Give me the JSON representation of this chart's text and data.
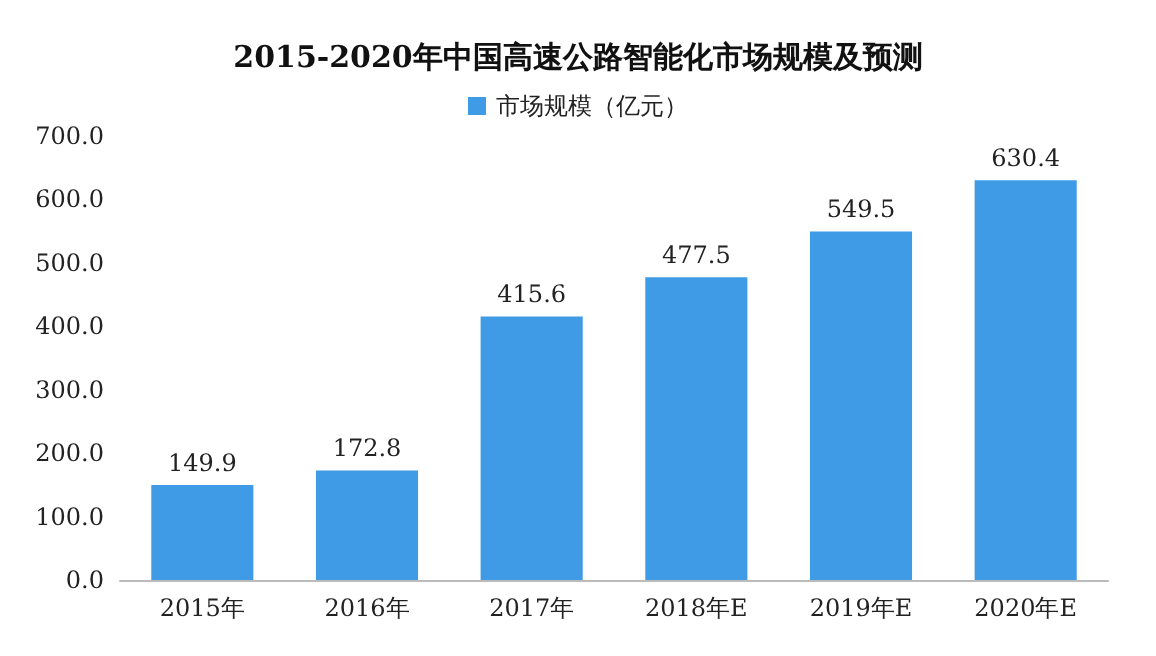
{
  "chart_data": {
    "type": "bar",
    "title": "2015-2020年中国高速公路智能化市场规模及预测",
    "categories": [
      "2015年",
      "2016年",
      "2017年",
      "2018年E",
      "2019年E",
      "2020年E"
    ],
    "series": [
      {
        "name": "市场规模（亿元）",
        "color": "#3f9be6",
        "values": [
          149.9,
          172.8,
          415.6,
          477.5,
          549.5,
          630.4
        ]
      }
    ],
    "ylim": [
      0,
      700
    ],
    "yticks": [
      {
        "value": 0,
        "label": "0.0"
      },
      {
        "value": 100,
        "label": "100.0"
      },
      {
        "value": 200,
        "label": "200.0"
      },
      {
        "value": 300,
        "label": "300.0"
      },
      {
        "value": 400,
        "label": "400.0"
      },
      {
        "value": 500,
        "label": "500.0"
      },
      {
        "value": 600,
        "label": "600.0"
      },
      {
        "value": 700,
        "label": "700.0"
      }
    ],
    "grid": false,
    "legend": "top",
    "data_labels": true
  }
}
